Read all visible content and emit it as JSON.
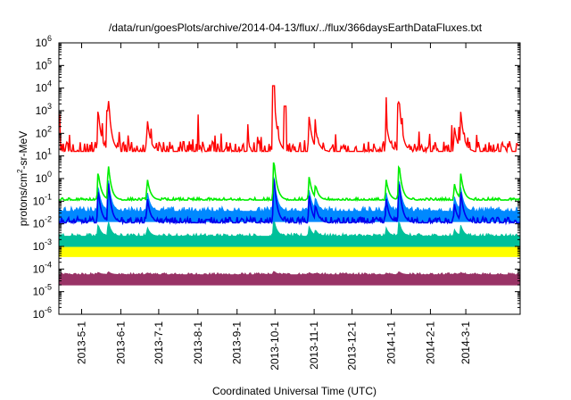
{
  "chart_data": {
    "type": "line",
    "title": "/data/run/goesPlots/archive/2014-04-13/flux/../flux/366daysEarthDataFluxes.txt",
    "xlabel": "Coordinated Universal Time (UTC)",
    "ylabel_main": "protons/cm",
    "ylabel_sup": "2",
    "ylabel_rest": "-sr-MeV",
    "yscale": "log",
    "ylim_exp": [
      -6,
      6
    ],
    "y_tick_exponents": [
      -6,
      -5,
      -4,
      -3,
      -2,
      -1,
      0,
      1,
      2,
      3,
      4,
      5,
      6
    ],
    "y_tick_base": "10",
    "x_range": [
      "2013-04-13",
      "2014-04-13"
    ],
    "x_ticks": [
      {
        "date": "2013-05-01",
        "label": "2013-5-1"
      },
      {
        "date": "2013-06-01",
        "label": "2013-6-1"
      },
      {
        "date": "2013-07-01",
        "label": "2013-7-1"
      },
      {
        "date": "2013-08-01",
        "label": "2013-8-1"
      },
      {
        "date": "2013-09-01",
        "label": "2013-9-1"
      },
      {
        "date": "2013-10-01",
        "label": "2013-10-1"
      },
      {
        "date": "2013-11-01",
        "label": "2013-11-1"
      },
      {
        "date": "2013-12-01",
        "label": "2013-12-1"
      },
      {
        "date": "2014-01-01",
        "label": "2014-1-1"
      },
      {
        "date": "2014-02-01",
        "label": "2014-2-1"
      },
      {
        "date": "2014-03-01",
        "label": "2014-3-1"
      }
    ],
    "grid": false,
    "legend": "none",
    "series": [
      {
        "color": "#993366",
        "base_exp": -4.25,
        "noise": 0.08,
        "fill": true
      },
      {
        "color": "#ffff00",
        "base_exp": -3.0,
        "noise": 0.12,
        "fill": true
      },
      {
        "color": "#00c09a",
        "base_exp": -2.55,
        "noise": 0.12,
        "fill": true
      },
      {
        "color": "#0088ff",
        "base_exp": -1.45,
        "noise": 0.2,
        "fill": true
      },
      {
        "color": "#0000ee",
        "base_exp": -1.95,
        "noise": 0.25,
        "fill": false
      },
      {
        "color": "#00ee00",
        "base_exp": -0.95,
        "noise": 0.1,
        "fill": false
      },
      {
        "color": "#ff0000",
        "base_exp": 1.2,
        "noise": 0.45,
        "fill": false
      }
    ],
    "events": [
      {
        "date": "2013-05-14",
        "peak_exp": 2.2
      },
      {
        "date": "2013-05-22",
        "peak_exp": 2.8
      },
      {
        "date": "2013-06-22",
        "peak_exp": 1.6
      },
      {
        "date": "2013-09-30",
        "peak_exp": 3.2
      },
      {
        "date": "2013-10-28",
        "peak_exp": 1.8
      },
      {
        "date": "2013-11-02",
        "peak_exp": 1.2
      },
      {
        "date": "2013-12-28",
        "peak_exp": 1.5
      },
      {
        "date": "2014-01-07",
        "peak_exp": 2.9
      },
      {
        "date": "2014-02-20",
        "peak_exp": 1.2
      },
      {
        "date": "2014-02-25",
        "peak_exp": 2.0
      }
    ],
    "peaks_red": [
      {
        "date": "2013-04-13",
        "exp": 2.8
      },
      {
        "date": "2013-05-22",
        "exp": 3.0
      },
      {
        "date": "2013-09-30",
        "exp": 4.1
      },
      {
        "date": "2013-10-09",
        "exp": 3.2
      },
      {
        "date": "2014-01-07",
        "exp": 3.3
      }
    ]
  }
}
